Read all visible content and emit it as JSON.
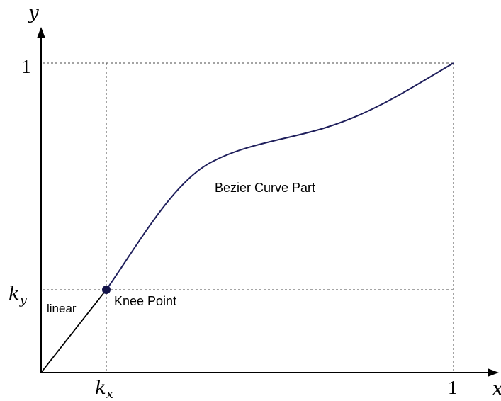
{
  "axes": {
    "x_label": "x",
    "y_label": "y"
  },
  "ticks": {
    "x_knee": "k",
    "x_knee_sub": "x",
    "x_one": "1",
    "y_knee": "k",
    "y_knee_sub": "y",
    "y_one": "1"
  },
  "annotations": {
    "curve_label": "Bezier Curve Part",
    "linear_label": "linear",
    "knee_label": "Knee Point"
  },
  "colors": {
    "curve": "#1f1f5c",
    "knee_point": "#14144a",
    "linear": "#000000",
    "axes": "#000000",
    "guides": "#4a4a4a"
  },
  "icons": {
    "x_axis_arrow": "arrow-right-icon",
    "y_axis_arrow": "arrow-up-icon"
  }
}
